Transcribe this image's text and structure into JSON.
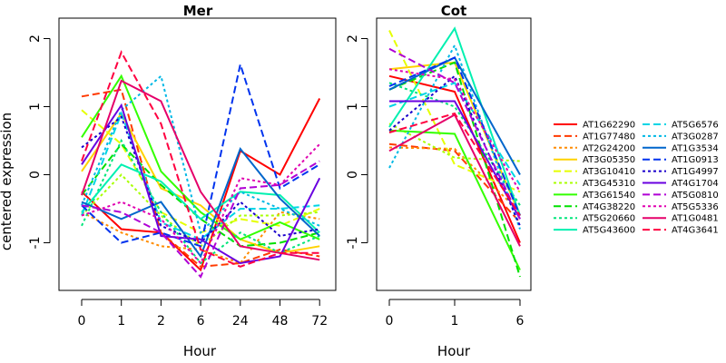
{
  "chart_data": [
    {
      "type": "line",
      "title": "Mer",
      "xlabel": "Hour",
      "ylabel": "centered expression",
      "categories": [
        "0",
        "1",
        "2",
        "6",
        "24",
        "48",
        "72"
      ],
      "ylim": [
        -1.7,
        2.3
      ],
      "yticks": [
        -1,
        0,
        1,
        2
      ],
      "grid": false,
      "series": [
        {
          "name": "AT1G62290",
          "color": "#ff0000",
          "dash": "solid",
          "values": [
            -0.25,
            -0.8,
            -0.85,
            -1.4,
            0.35,
            0.0,
            1.12
          ]
        },
        {
          "name": "AT1G77480",
          "color": "#ff3a00",
          "dash": "long",
          "values": [
            1.15,
            1.25,
            -0.85,
            -1.35,
            -1.3,
            -1.1,
            -1.2
          ]
        },
        {
          "name": "AT2G24200",
          "color": "#ff8c00",
          "dash": "short",
          "values": [
            -0.55,
            -0.85,
            -1.05,
            -1.1,
            -1.3,
            -0.55,
            -0.65
          ]
        },
        {
          "name": "AT3G05350",
          "color": "#ffd200",
          "dash": "solid",
          "values": [
            0.05,
            0.9,
            -0.2,
            -0.45,
            -0.95,
            -1.15,
            -1.05
          ]
        },
        {
          "name": "AT3G10410",
          "color": "#e5ff00",
          "dash": "long",
          "values": [
            0.95,
            0.45,
            -0.55,
            -0.85,
            -0.65,
            -0.75,
            -0.5
          ]
        },
        {
          "name": "AT3G45310",
          "color": "#a8ff00",
          "dash": "short",
          "values": [
            -0.6,
            0.0,
            -0.6,
            -1.05,
            -0.6,
            -0.6,
            -0.55
          ]
        },
        {
          "name": "AT3G61540",
          "color": "#33ff00",
          "dash": "solid",
          "values": [
            0.55,
            1.45,
            0.05,
            -0.55,
            -0.95,
            -0.7,
            -0.95
          ]
        },
        {
          "name": "AT4G38220",
          "color": "#00e000",
          "dash": "long",
          "values": [
            -0.3,
            0.45,
            -0.15,
            -0.65,
            -1.05,
            -1.0,
            -0.85
          ]
        },
        {
          "name": "AT5G20660",
          "color": "#00e57a",
          "dash": "short",
          "values": [
            -0.75,
            0.5,
            -0.55,
            -1.3,
            -0.85,
            -1.15,
            -0.9
          ]
        },
        {
          "name": "AT5G43600",
          "color": "#00f0b0",
          "dash": "solid",
          "values": [
            -0.55,
            0.15,
            -0.1,
            -0.65,
            -0.25,
            -0.3,
            -0.85
          ]
        },
        {
          "name": "AT5G6576",
          "color": "#00d5e5",
          "dash": "long",
          "values": [
            -0.6,
            0.9,
            -0.7,
            -0.95,
            -0.5,
            -0.5,
            -0.45
          ]
        },
        {
          "name": "AT3G0287",
          "color": "#00b8e5",
          "dash": "short",
          "values": [
            -0.45,
            0.95,
            1.45,
            -0.85,
            -0.25,
            -0.5,
            -0.75
          ]
        },
        {
          "name": "AT1G3534",
          "color": "#0066cc",
          "dash": "solid",
          "values": [
            -0.4,
            -0.65,
            -0.4,
            -1.2,
            0.38,
            -0.35,
            -0.9
          ]
        },
        {
          "name": "AT1G0913",
          "color": "#0033ee",
          "dash": "long",
          "values": [
            -0.45,
            -1.0,
            -0.85,
            -1.05,
            1.62,
            -0.2,
            0.15
          ]
        },
        {
          "name": "AT1G4997",
          "color": "#1a00cc",
          "dash": "short",
          "values": [
            0.4,
            0.85,
            -0.75,
            -1.0,
            -0.4,
            -0.9,
            -0.8
          ]
        },
        {
          "name": "AT4G1704",
          "color": "#6a00e0",
          "dash": "solid",
          "values": [
            0.15,
            1.02,
            -0.9,
            -0.95,
            -1.3,
            -1.2,
            -0.05
          ]
        },
        {
          "name": "AT5G0810",
          "color": "#b000d5",
          "dash": "long",
          "values": [
            -0.45,
            -0.55,
            -0.85,
            -1.5,
            -0.2,
            -0.15,
            0.2
          ]
        },
        {
          "name": "AT5G5336",
          "color": "#e000b0",
          "dash": "short",
          "values": [
            -0.6,
            -0.4,
            -0.65,
            -1.3,
            -0.05,
            -0.15,
            0.45
          ]
        },
        {
          "name": "AT1G0481",
          "color": "#e5006a",
          "dash": "solid",
          "values": [
            -0.3,
            1.38,
            1.08,
            -0.25,
            -1.05,
            -1.15,
            -1.25
          ]
        },
        {
          "name": "AT4G3641",
          "color": "#ff0040",
          "dash": "long",
          "values": [
            0.2,
            1.8,
            0.75,
            -1.1,
            -1.35,
            -1.15,
            -1.15
          ]
        }
      ]
    },
    {
      "type": "line",
      "title": "Cot",
      "xlabel": "Hour",
      "ylabel": "",
      "categories": [
        "0",
        "1",
        "6"
      ],
      "ylim": [
        -1.7,
        2.3
      ],
      "yticks": [
        -1,
        0,
        1,
        2
      ],
      "grid": false,
      "series": [
        {
          "name": "AT1G62290",
          "values": [
            1.45,
            1.22,
            -1.0
          ]
        },
        {
          "name": "AT1G77480",
          "values": [
            0.45,
            0.35,
            -0.7
          ]
        },
        {
          "name": "AT2G24200",
          "values": [
            0.4,
            0.38,
            -0.55
          ]
        },
        {
          "name": "AT3G05350",
          "values": [
            1.55,
            1.65,
            -0.6
          ]
        },
        {
          "name": "AT3G10410",
          "values": [
            2.12,
            0.15,
            -0.25
          ]
        },
        {
          "name": "AT3G45310",
          "values": [
            0.75,
            0.25,
            0.2
          ]
        },
        {
          "name": "AT3G61540",
          "values": [
            0.65,
            0.6,
            -1.4
          ]
        },
        {
          "name": "AT4G38220",
          "values": [
            1.25,
            1.65,
            -1.5
          ]
        },
        {
          "name": "AT5G20660",
          "values": [
            1.35,
            1.0,
            -0.45
          ]
        },
        {
          "name": "AT5G43600",
          "values": [
            0.7,
            2.15,
            -0.6
          ]
        },
        {
          "name": "AT5G6576",
          "values": [
            1.0,
            1.35,
            -0.15
          ]
        },
        {
          "name": "AT3G0287",
          "values": [
            0.1,
            1.9,
            -0.8
          ]
        },
        {
          "name": "AT1G3534",
          "values": [
            1.25,
            1.72,
            0.0
          ]
        },
        {
          "name": "AT1G0913",
          "values": [
            1.3,
            1.72,
            -0.6
          ]
        },
        {
          "name": "AT1G4997",
          "values": [
            0.65,
            1.45,
            -0.75
          ]
        },
        {
          "name": "AT4G1704",
          "values": [
            1.08,
            1.08,
            -0.65
          ]
        },
        {
          "name": "AT5G0810",
          "values": [
            1.85,
            1.35,
            -0.65
          ]
        },
        {
          "name": "AT5G5336",
          "values": [
            1.55,
            1.4,
            -0.25
          ]
        },
        {
          "name": "AT1G0481",
          "values": [
            0.35,
            0.88,
            -1.05
          ]
        },
        {
          "name": "AT4G3641",
          "values": [
            0.62,
            0.9,
            -0.6
          ]
        }
      ]
    }
  ],
  "legend": {
    "placement": "right",
    "columns": [
      [
        "AT1G62290",
        "AT1G77480",
        "AT2G24200",
        "AT3G05350",
        "AT3G10410",
        "AT3G45310",
        "AT3G61540",
        "AT4G38220",
        "AT5G20660",
        "AT5G43600"
      ],
      [
        "AT5G6576",
        "AT3G0287",
        "AT1G3534",
        "AT1G0913",
        "AT1G4997",
        "AT4G1704",
        "AT5G0810",
        "AT5G5336",
        "AT1G0481",
        "AT4G3641"
      ]
    ]
  }
}
